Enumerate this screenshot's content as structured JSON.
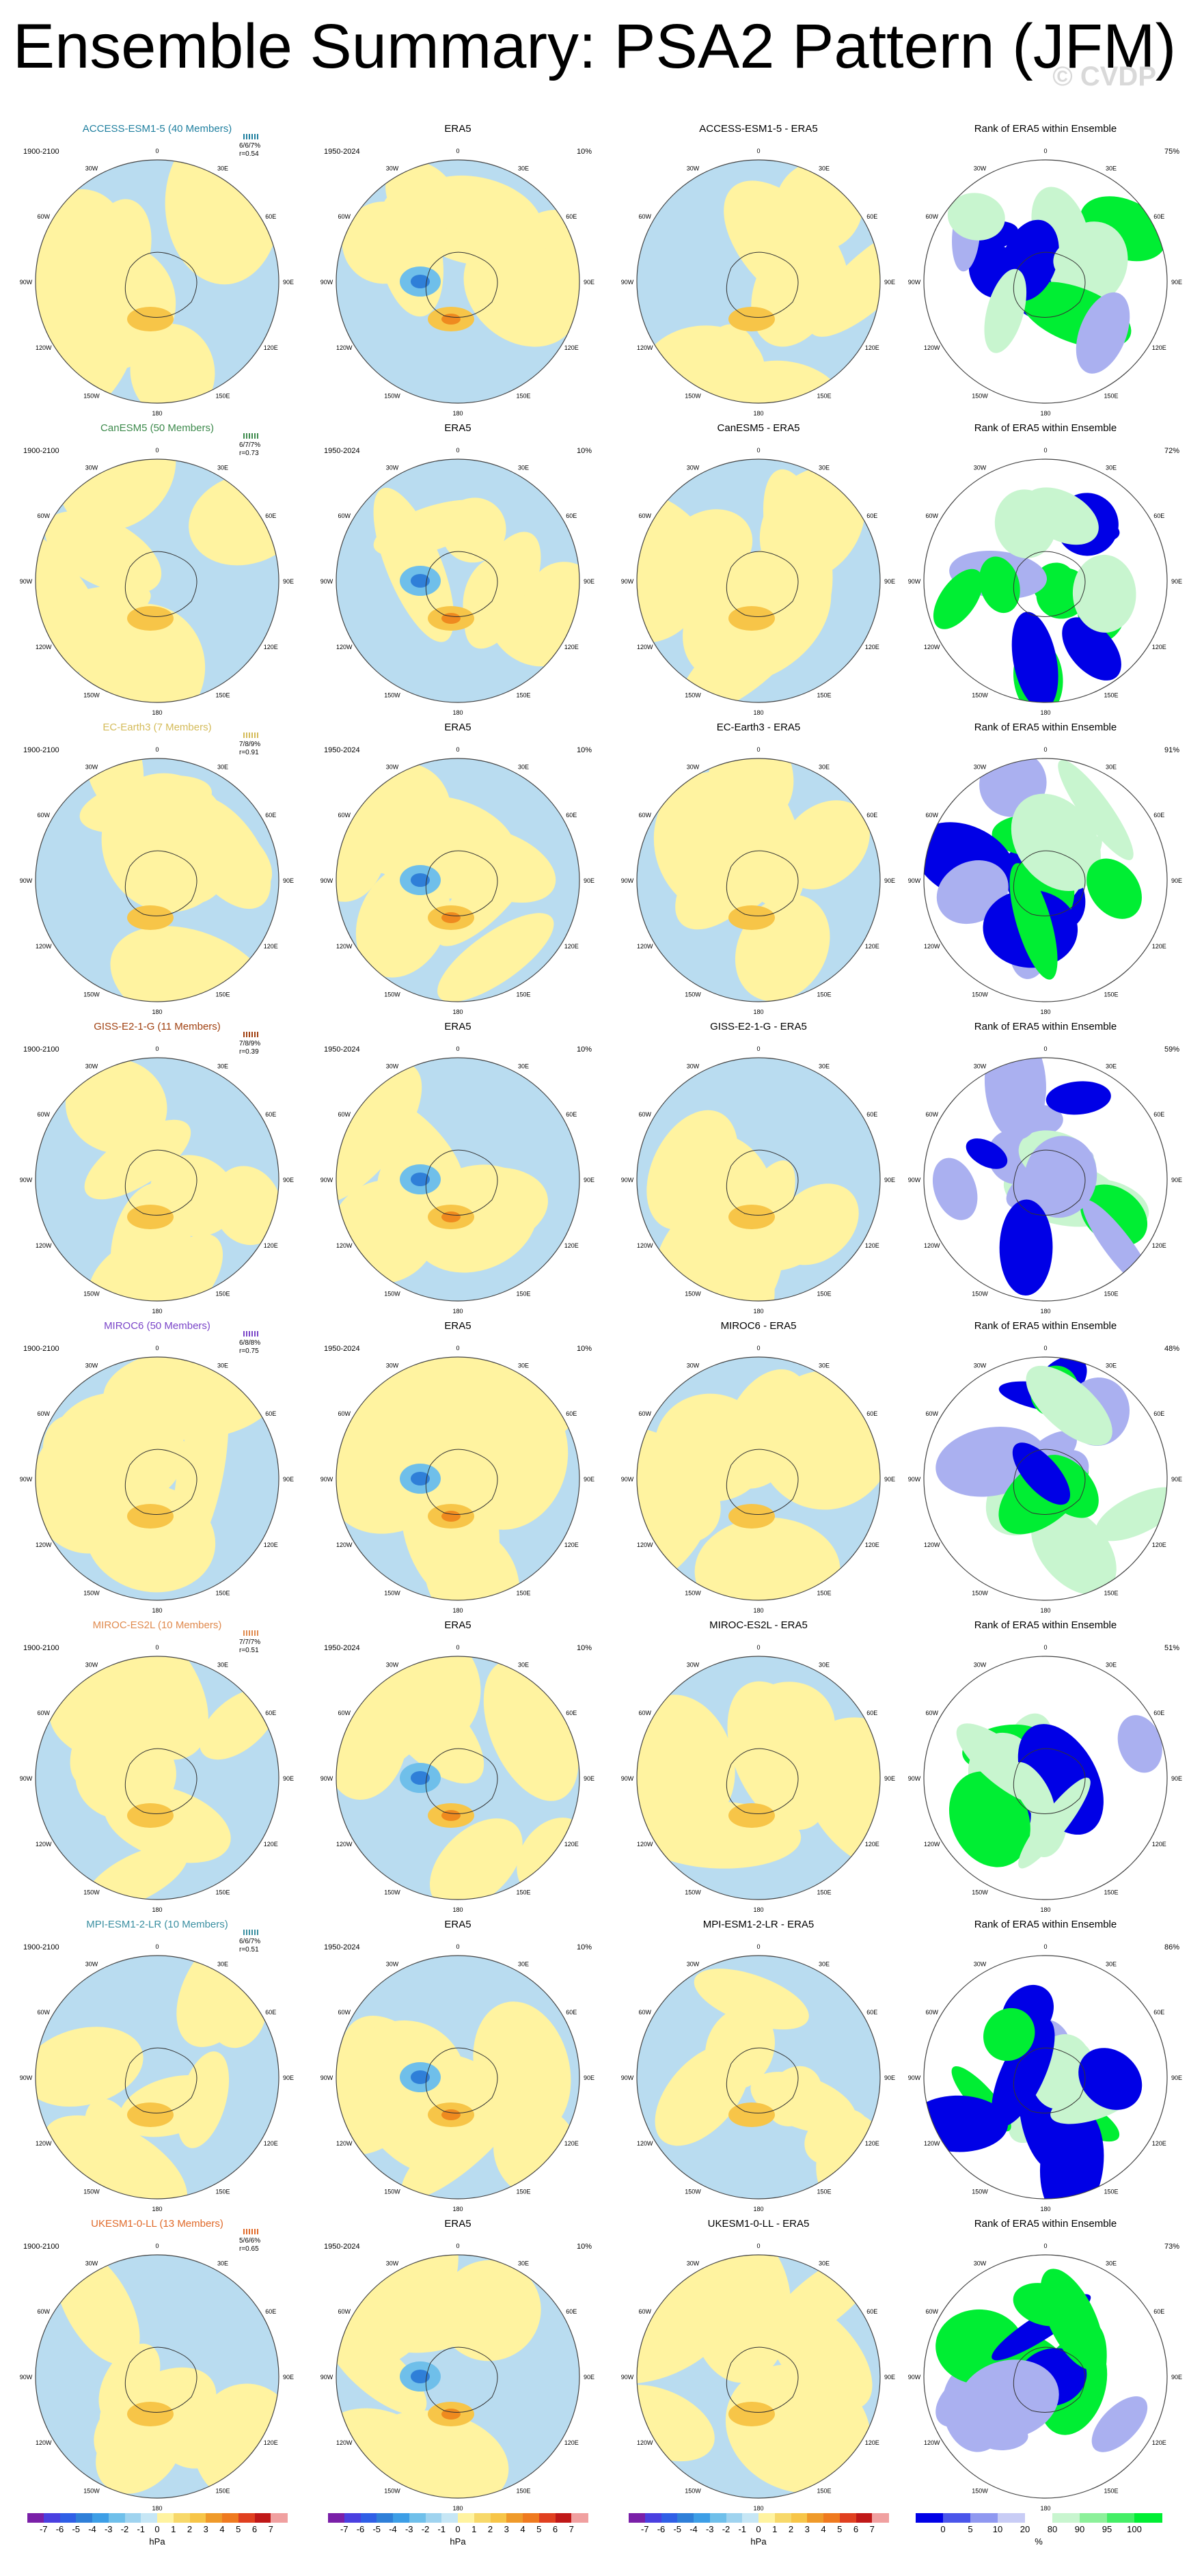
{
  "title": "Ensemble Summary: PSA2 Pattern (JFM)",
  "watermark": "© CVDP",
  "colors": {
    "neg_light": "#b9dcf0",
    "neg_mid": "#6fbfea",
    "neg_strong": "#2f7fd8",
    "pos_light": "#fff3a0",
    "pos_mid": "#f7c548",
    "pos_strong": "#ef8a1f",
    "rank_low": "#0000e6",
    "rank_lowmid": "#aab0f0",
    "rank_high": "#00ee33",
    "rank_highlight": "#c8f5cf",
    "model_ACCESS": "#1f7f9f",
    "model_CanESM5": "#3d8a4c",
    "model_EC": "#d4bb59",
    "model_GISS": "#a04010",
    "model_MIROC6": "#7a45c8",
    "model_MIROCES2L": "#e08a4e",
    "model_MPI": "#3a8fa1",
    "model_UKESM": "#e06a2a"
  },
  "lon_labels": [
    "0",
    "30E",
    "60E",
    "90E",
    "120E",
    "150E",
    "180",
    "150W",
    "120W",
    "90W",
    "60W",
    "30W"
  ],
  "rows": [
    {
      "model": "ACCESS-ESM1-5 (40 Members)",
      "color_key": "model_ACCESS",
      "period": "1900-2100",
      "r_text": "6/6/7%\nr=0.54",
      "diff_title": "ACCESS-ESM1-5 - ERA5",
      "rank_pct": "75%"
    },
    {
      "model": "CanESM5 (50 Members)",
      "color_key": "model_CanESM5",
      "period": "1900-2100",
      "r_text": "6/7/7%\nr=0.73",
      "diff_title": "CanESM5 - ERA5",
      "rank_pct": "72%"
    },
    {
      "model": "EC-Earth3 (7 Members)",
      "color_key": "model_EC",
      "period": "1900-2100",
      "r_text": "7/8/9%\nr=0.91",
      "diff_title": "EC-Earth3 - ERA5",
      "rank_pct": "91%"
    },
    {
      "model": "GISS-E2-1-G (11 Members)",
      "color_key": "model_GISS",
      "period": "1900-2100",
      "r_text": "7/8/9%\nr=0.39",
      "diff_title": "GISS-E2-1-G - ERA5",
      "rank_pct": "59%"
    },
    {
      "model": "MIROC6 (50 Members)",
      "color_key": "model_MIROC6",
      "period": "1900-2100",
      "r_text": "6/8/8%\nr=0.75",
      "diff_title": "MIROC6 - ERA5",
      "rank_pct": "48%"
    },
    {
      "model": "MIROC-ES2L (10 Members)",
      "color_key": "model_MIROCES2L",
      "period": "1900-2100",
      "r_text": "7/7/7%\nr=0.51",
      "diff_title": "MIROC-ES2L - ERA5",
      "rank_pct": "51%"
    },
    {
      "model": "MPI-ESM1-2-LR (10 Members)",
      "color_key": "model_MPI",
      "period": "1900-2100",
      "r_text": "6/6/7%\nr=0.51",
      "diff_title": "MPI-ESM1-2-LR - ERA5",
      "rank_pct": "86%"
    },
    {
      "model": "UKESM1-0-LL (13 Members)",
      "color_key": "model_UKESM",
      "period": "1900-2100",
      "r_text": "5/6/6%\nr=0.65",
      "diff_title": "UKESM1-0-LL - ERA5",
      "rank_pct": "73%"
    }
  ],
  "era5": {
    "title": "ERA5",
    "period": "1950-2024",
    "pct": "10%"
  },
  "rank_title": "Rank of ERA5 within Ensemble",
  "colorbar_hpa": {
    "unit": "hPa",
    "labels": [
      "-7",
      "-6",
      "-5",
      "-4",
      "-3",
      "-2",
      "-1",
      "0",
      "1",
      "2",
      "3",
      "4",
      "5",
      "6",
      "7"
    ],
    "colors": [
      "#7a1fa8",
      "#4a3fe0",
      "#2f5fe6",
      "#2f7fd8",
      "#3d9ee6",
      "#6fbfea",
      "#9fd3ef",
      "#c6e6f5",
      "#fff3a0",
      "#f7d86a",
      "#f7c548",
      "#ef9a2a",
      "#ef7a1f",
      "#e04020",
      "#c01818",
      "#f0a0a0"
    ]
  },
  "colorbar_rank": {
    "unit": "%",
    "labels": [
      "0",
      "5",
      "10",
      "20",
      "80",
      "90",
      "95",
      "100"
    ],
    "colors": [
      "#0000e6",
      "#4a55ea",
      "#8f98f0",
      "#c8ccf5",
      "#ffffff",
      "#c8f5cf",
      "#8cf09a",
      "#44ee66",
      "#00ee33"
    ]
  }
}
